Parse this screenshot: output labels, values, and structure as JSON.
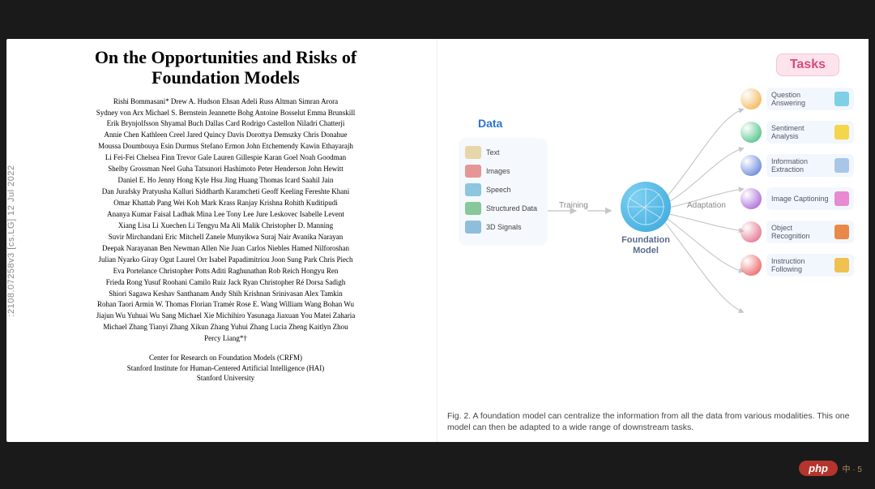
{
  "arxiv": ":2108.07258v3  [cs.LG]  12 Jul 2022",
  "title_l1": "On the Opportunities and Risks of",
  "title_l2": "Foundation Models",
  "author_lines": [
    "Rishi Bommasani*   Drew A. Hudson   Ehsan Adeli   Russ Altman   Simran Arora",
    "Sydney von Arx   Michael S. Bernstein   Jeannette Bohg   Antoine Bosselut   Emma Brunskill",
    "Erik Brynjolfsson   Shyamal Buch   Dallas Card   Rodrigo Castellon   Niladri Chatterji",
    "Annie Chen   Kathleen Creel   Jared Quincy Davis   Dorottya Demszky   Chris Donahue",
    "Moussa Doumbouya   Esin Durmus   Stefano Ermon   John Etchemendy   Kawin Ethayarajh",
    "Li Fei-Fei   Chelsea Finn   Trevor Gale   Lauren Gillespie   Karan Goel   Noah Goodman",
    "Shelby Grossman   Neel Guha   Tatsunori Hashimoto   Peter Henderson   John Hewitt",
    "Daniel E. Ho   Jenny Hong   Kyle Hsu   Jing Huang   Thomas Icard   Saahil Jain",
    "Dan Jurafsky   Pratyusha Kalluri   Siddharth Karamcheti   Geoff Keeling   Fereshte Khani",
    "Omar Khattab   Pang Wei Koh   Mark Krass   Ranjay Krishna   Rohith Kuditipudi",
    "Ananya Kumar   Faisal Ladhak   Mina Lee   Tony Lee   Jure Leskovec   Isabelle Levent",
    "Xiang Lisa Li   Xuechen Li   Tengyu Ma   Ali Malik   Christopher D. Manning",
    "Suvir Mirchandani   Eric Mitchell   Zanele Munyikwa   Suraj Nair   Avanika Narayan",
    "Deepak Narayanan   Ben Newman   Allen Nie   Juan Carlos Niebles   Hamed Nilforoshan",
    "Julian Nyarko   Giray Ogut   Laurel Orr   Isabel Papadimitriou   Joon Sung Park   Chris Piech",
    "Eva Portelance   Christopher Potts   Aditi Raghunathan   Rob Reich   Hongyu Ren",
    "Frieda Rong   Yusuf Roohani   Camilo Ruiz   Jack Ryan   Christopher Ré   Dorsa Sadigh",
    "Shiori Sagawa   Keshav Santhanam   Andy Shih   Krishnan Srinivasan   Alex Tamkin",
    "Rohan Taori   Armin W. Thomas   Florian Tramèr   Rose E. Wang   William Wang   Bohan Wu",
    "Jiajun Wu   Yuhuai Wu   Sang Michael Xie   Michihiro Yasunaga   Jiaxuan You   Matei Zaharia",
    "Michael Zhang   Tianyi Zhang   Xikun Zhang   Yuhui Zhang   Lucia Zheng   Kaitlyn Zhou",
    "Percy Liang*†"
  ],
  "affil": [
    "Center for Research on Foundation Models (CRFM)",
    "Stanford Institute for Human-Centered Artificial Intelligence (HAI)",
    "Stanford University"
  ],
  "diagram": {
    "data_label": "Data",
    "data_items": [
      {
        "label": "Text",
        "color": "#e7d7a8"
      },
      {
        "label": "Images",
        "color": "#e79696"
      },
      {
        "label": "Speech",
        "color": "#8ec6e0"
      },
      {
        "label": "Structured Data",
        "color": "#88c79a"
      },
      {
        "label": "3D Signals",
        "color": "#8fbedc"
      }
    ],
    "fm_label_l1": "Foundation",
    "fm_label_l2": "Model",
    "fm_color": "#37a6da",
    "training": "Training",
    "adaptation": "Adaptation",
    "tasks_label": "Tasks",
    "tasks": [
      {
        "label": "Question Answering",
        "ball": "#f0a935",
        "mini": "#7dd0e6"
      },
      {
        "label": "Sentiment Analysis",
        "ball": "#2fb870",
        "mini": "#f5d54a"
      },
      {
        "label": "Information Extraction",
        "ball": "#4a6fd4",
        "mini": "#a8c6e8"
      },
      {
        "label": "Image Captioning",
        "ball": "#9a4fd1",
        "mini": "#e88ad1"
      },
      {
        "label": "Object Recognition",
        "ball": "#e05a7a",
        "mini": "#e8894a"
      },
      {
        "label": "Instruction Following",
        "ball": "#e64a4a",
        "mini": "#f0c050"
      }
    ],
    "arrow_color": "#c7c7c7"
  },
  "caption": "Fig. 2.   A foundation model can centralize the information from all the data from various modalities. This one model can then be adapted to a wide range of downstream tasks.",
  "badge": "php",
  "page_ind": "中 · 5"
}
